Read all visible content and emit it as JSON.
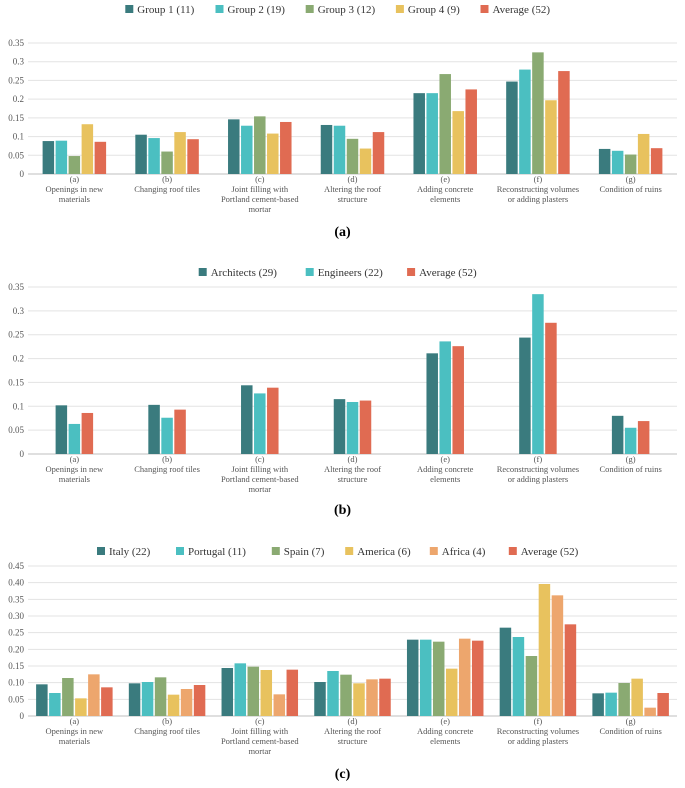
{
  "chart_data": [
    {
      "type": "bar",
      "panel_label": "(a)",
      "ylim": [
        0,
        0.35
      ],
      "yticks": [
        "0",
        "0.05",
        "0.1",
        "0.15",
        "0.2",
        "0.25",
        "0.3",
        "0.35"
      ],
      "categories": [
        [
          "(a)",
          "Openings in new",
          "materials"
        ],
        [
          "(b)",
          "Changing roof tiles"
        ],
        [
          "(c)",
          "Joint filling with",
          "Portland cement-based",
          "mortar"
        ],
        [
          "(d)",
          "Altering the roof",
          "structure"
        ],
        [
          "(e)",
          "Adding concrete",
          "elements"
        ],
        [
          "(f)",
          "Reconstructing volumes",
          "or adding plasters"
        ],
        [
          "(g)",
          "Condition of ruins"
        ]
      ],
      "series": [
        {
          "name": "Group 1 (11)",
          "color": "#3a7b7e",
          "values": [
            0.088,
            0.105,
            0.146,
            0.131,
            0.216,
            0.247,
            0.067
          ]
        },
        {
          "name": "Group 2 (19)",
          "color": "#4bbfc1",
          "values": [
            0.089,
            0.096,
            0.129,
            0.129,
            0.216,
            0.279,
            0.062
          ]
        },
        {
          "name": "Group 3 (12)",
          "color": "#8aaa72",
          "values": [
            0.048,
            0.06,
            0.154,
            0.094,
            0.267,
            0.325,
            0.052
          ]
        },
        {
          "name": "Group 4 (9)",
          "color": "#e8c25e",
          "values": [
            0.133,
            0.112,
            0.108,
            0.068,
            0.168,
            0.197,
            0.107
          ]
        },
        {
          "name": "Average (52)",
          "color": "#e06b52",
          "values": [
            0.086,
            0.093,
            0.139,
            0.112,
            0.226,
            0.275,
            0.069
          ]
        }
      ]
    },
    {
      "type": "bar",
      "panel_label": "(b)",
      "ylim": [
        0,
        0.35
      ],
      "yticks": [
        "0",
        "0.05",
        "0.1",
        "0.15",
        "0.2",
        "0.25",
        "0.3",
        "0.35"
      ],
      "categories": [
        [
          "(a)",
          "Openings in new",
          "materials"
        ],
        [
          "(b)",
          "Changing roof tiles"
        ],
        [
          "(c)",
          "Joint filling with",
          "Portland cement-based",
          "mortar"
        ],
        [
          "(d)",
          "Altering the roof",
          "structure"
        ],
        [
          "(e)",
          "Adding concrete",
          "elements"
        ],
        [
          "(f)",
          "Reconstructing volumes",
          "or adding plasters"
        ],
        [
          "(g)",
          "Condition of ruins"
        ]
      ],
      "series": [
        {
          "name": "Architects (29)",
          "color": "#3a7b7e",
          "values": [
            0.102,
            0.103,
            0.144,
            0.115,
            0.211,
            0.244,
            0.08
          ]
        },
        {
          "name": "Engineers (22)",
          "color": "#4bbfc1",
          "values": [
            0.063,
            0.076,
            0.127,
            0.109,
            0.236,
            0.335,
            0.055
          ]
        },
        {
          "name": "Average (52)",
          "color": "#e06b52",
          "values": [
            0.086,
            0.093,
            0.139,
            0.112,
            0.226,
            0.275,
            0.069
          ]
        }
      ]
    },
    {
      "type": "bar",
      "panel_label": "(c)",
      "ylim": [
        0,
        0.45
      ],
      "yticks": [
        "0",
        "0.05",
        "0.10",
        "0.15",
        "0.20",
        "0.25",
        "0.30",
        "0.35",
        "0.40",
        "0.45"
      ],
      "categories": [
        [
          "(a)",
          "Openings in new",
          "materials"
        ],
        [
          "(b)",
          "Changing roof tiles"
        ],
        [
          "(c)",
          "Joint filling with",
          "Portland cement-based",
          "mortar"
        ],
        [
          "(d)",
          "Altering the roof",
          "structure"
        ],
        [
          "(e)",
          "Adding concrete",
          "elements"
        ],
        [
          "(f)",
          "Reconstructing volumes",
          "or adding plasters"
        ],
        [
          "(g)",
          "Condition of ruins"
        ]
      ],
      "series": [
        {
          "name": "Italy (22)",
          "color": "#3a7b7e",
          "values": [
            0.095,
            0.098,
            0.144,
            0.102,
            0.229,
            0.265,
            0.068
          ]
        },
        {
          "name": "Portugal (11)",
          "color": "#4bbfc1",
          "values": [
            0.069,
            0.102,
            0.158,
            0.135,
            0.229,
            0.237,
            0.07
          ]
        },
        {
          "name": "Spain (7)",
          "color": "#8aaa72",
          "values": [
            0.114,
            0.116,
            0.148,
            0.124,
            0.223,
            0.18,
            0.099
          ]
        },
        {
          "name": "America (6)",
          "color": "#e8c25e",
          "values": [
            0.053,
            0.064,
            0.138,
            0.098,
            0.142,
            0.396,
            0.112
          ]
        },
        {
          "name": "Africa (4)",
          "color": "#eda66d",
          "values": [
            0.125,
            0.081,
            0.065,
            0.11,
            0.232,
            0.362,
            0.025
          ]
        },
        {
          "name": "Average (52)",
          "color": "#e06b52",
          "values": [
            0.086,
            0.093,
            0.139,
            0.112,
            0.226,
            0.275,
            0.069
          ]
        }
      ]
    }
  ]
}
